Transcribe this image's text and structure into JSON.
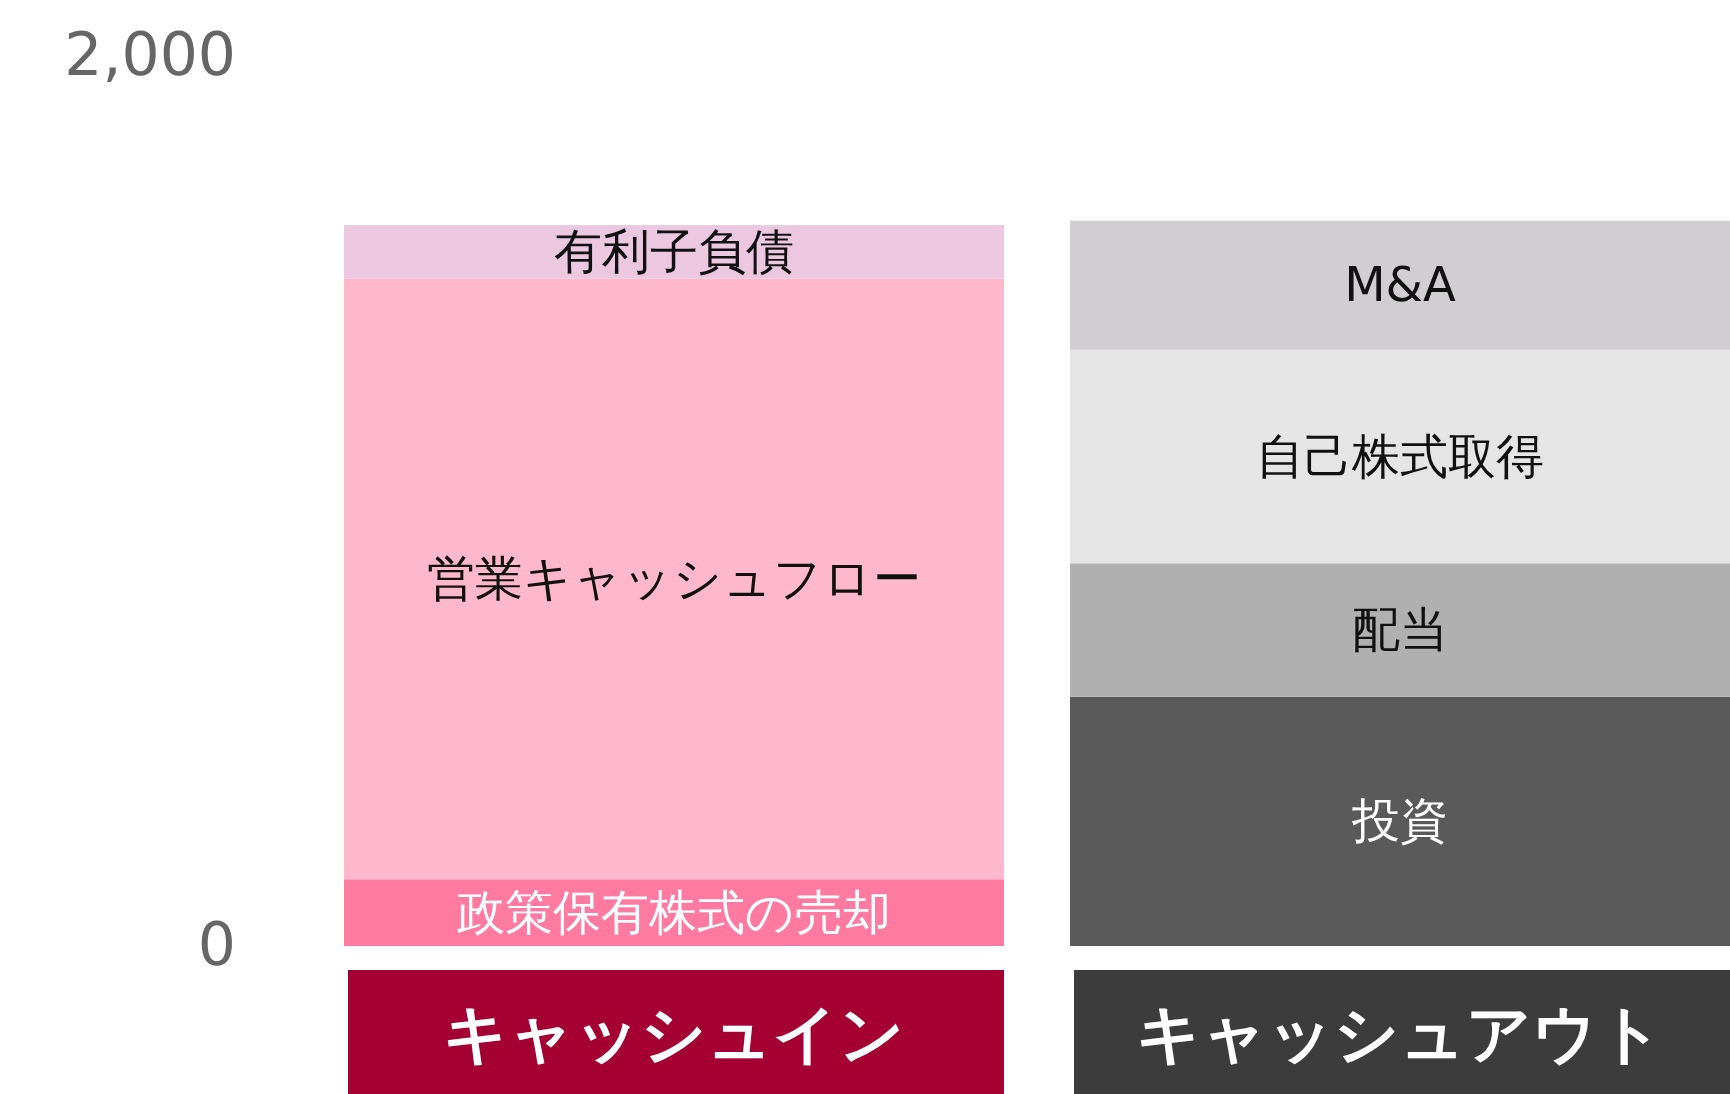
{
  "chart_data": {
    "type": "bar",
    "stacked": true,
    "categories": [
      "キャッシュイン",
      "キャッシュアウト"
    ],
    "ylim": [
      0,
      2000
    ],
    "yticks": [
      0,
      {
        "value": 2000,
        "label": "2,000"
      }
    ],
    "grid": false,
    "series": [
      {
        "name": "政策保有株式の売却",
        "color": "#ff7aa0",
        "values": [
          150,
          null
        ]
      },
      {
        "name": "営業キャッシュフロー",
        "color": "#fdb8cd",
        "values": [
          1350,
          null
        ]
      },
      {
        "name": "有利子負債",
        "color": "#ebc8e0",
        "values": [
          120,
          null
        ]
      },
      {
        "name": "投資",
        "color": "#5a5a5a",
        "values": [
          null,
          560
        ]
      },
      {
        "name": "配当",
        "color": "#b0b0b0",
        "values": [
          null,
          300
        ]
      },
      {
        "name": "自己株式取得",
        "color": "#e5e5e5",
        "values": [
          null,
          480
        ]
      },
      {
        "name": "M&A",
        "color": "#d0ced0",
        "values": [
          null,
          290
        ]
      }
    ]
  }
}
